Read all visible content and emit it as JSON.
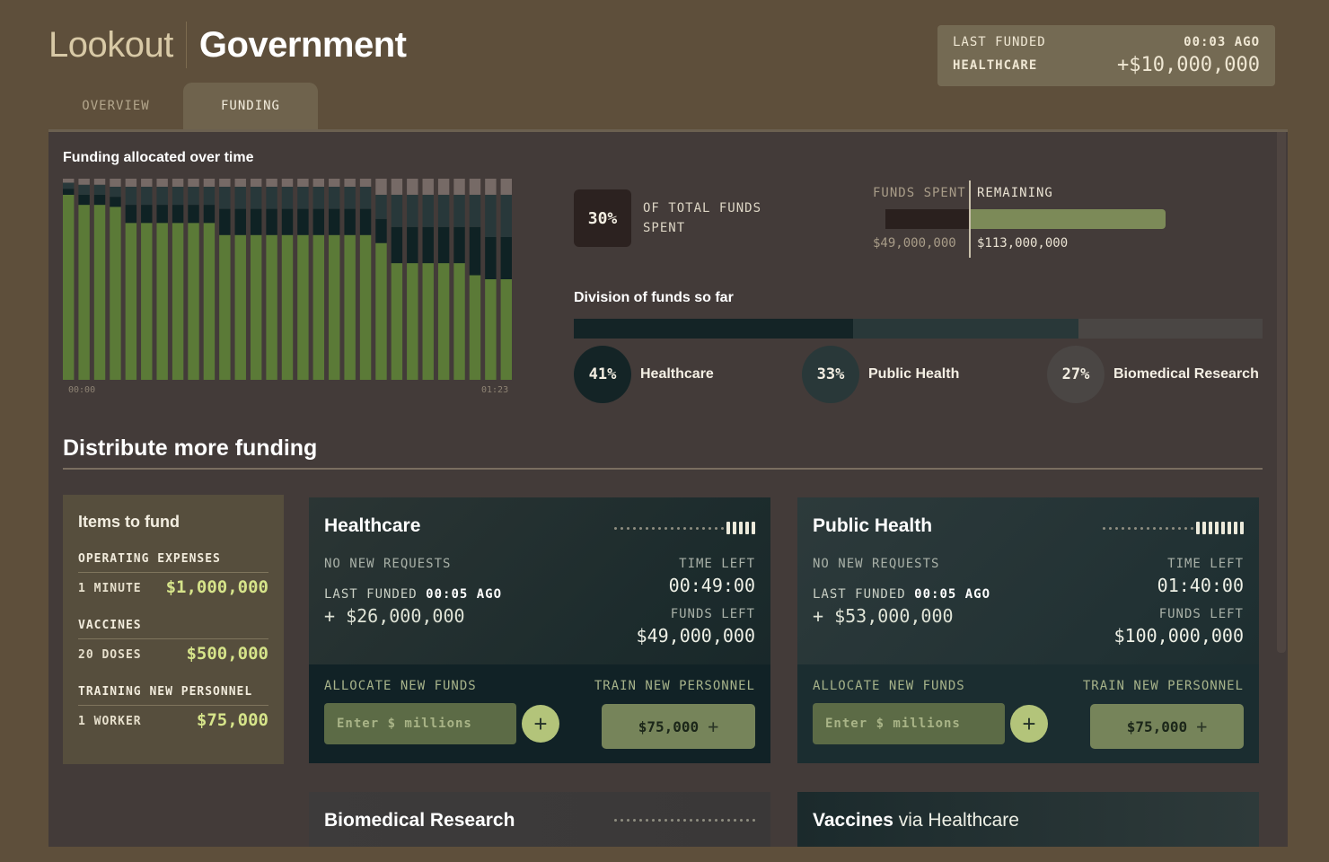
{
  "header": {
    "app_name": "Lookout",
    "page_name": "Government",
    "tabs": [
      {
        "label": "OVERVIEW"
      },
      {
        "label": "FUNDING"
      }
    ],
    "active_tab": "FUNDING"
  },
  "last_funded": {
    "label": "LAST FUNDED",
    "time": "00:03 AGO",
    "category": "HEALTHCARE",
    "amount": "+$10,000,000"
  },
  "chart_data": {
    "type": "bar",
    "title": "Funding allocated over time",
    "xlabel": "",
    "ylabel": "",
    "x_start": "00:00",
    "x_end": "01:23",
    "ylim": [
      0,
      100
    ],
    "stacking": "stacked-100",
    "series": [
      {
        "name": "",
        "color": "#5b7a37",
        "values": [
          92,
          87,
          87,
          86,
          78,
          78,
          78,
          78,
          78,
          78,
          72,
          72,
          72,
          72,
          72,
          72,
          72,
          72,
          72,
          72,
          68,
          58,
          58,
          58,
          58,
          58,
          52,
          50,
          50
        ]
      },
      {
        "name": "",
        "color": "#0f2224",
        "values": [
          3,
          5,
          5,
          5,
          9,
          9,
          9,
          9,
          9,
          9,
          13,
          13,
          13,
          13,
          13,
          13,
          13,
          13,
          13,
          13,
          12,
          18,
          18,
          18,
          18,
          18,
          24,
          21,
          21
        ]
      },
      {
        "name": "",
        "color": "#28383a",
        "values": [
          3,
          5,
          5,
          5,
          9,
          9,
          9,
          9,
          9,
          9,
          11,
          11,
          11,
          11,
          11,
          11,
          11,
          11,
          11,
          11,
          12,
          16,
          16,
          16,
          16,
          16,
          16,
          21,
          21
        ]
      },
      {
        "name": "",
        "color": "#766a66",
        "values": [
          2,
          3,
          3,
          4,
          4,
          4,
          4,
          4,
          4,
          4,
          4,
          4,
          4,
          4,
          4,
          4,
          4,
          4,
          4,
          4,
          8,
          8,
          8,
          8,
          8,
          8,
          8,
          8,
          8
        ]
      }
    ]
  },
  "spending": {
    "percent": "30%",
    "caption": "OF TOTAL FUNDS SPENT",
    "spent_label": "FUNDS SPENT",
    "remaining_label": "REMAINING",
    "spent_value": "$49,000,000",
    "remaining_value": "$113,000,000",
    "spent_fraction": 0.3,
    "colors": {
      "spent": "#2a201e",
      "remaining": "#7c8a58"
    }
  },
  "division": {
    "title": "Division of funds so far",
    "items": [
      {
        "percent": "41%",
        "share": 41,
        "label": "Healthcare",
        "color": "#142426"
      },
      {
        "percent": "33%",
        "share": 33,
        "label": "Public Health",
        "color": "#293839"
      },
      {
        "percent": "27%",
        "share": 27,
        "label": "Biomedical Research",
        "color": "#4a4644"
      }
    ]
  },
  "distribute": {
    "title": "Distribute more funding",
    "items_to_fund": {
      "title": "Items to fund",
      "categories": [
        {
          "name": "OPERATING EXPENSES",
          "qty": "1 MINUTE",
          "price": "$1,000,000"
        },
        {
          "name": "VACCINES",
          "qty": "20 DOSES",
          "price": "$500,000"
        },
        {
          "name": "TRAINING NEW PERSONNEL",
          "qty": "1 WORKER",
          "price": "$75,000"
        }
      ]
    },
    "cards": [
      {
        "name": "Healthcare",
        "requests": "NO NEW REQUESTS",
        "last_funded_label": "LAST FUNDED",
        "last_funded_time": "00:05 AGO",
        "last_amount": "+ $26,000,000",
        "time_left_label": "TIME LEFT",
        "time_left": "00:49:00",
        "funds_left_label": "FUNDS LEFT",
        "funds_left": "$49,000,000",
        "allocate_label": "ALLOCATE NEW FUNDS",
        "input_placeholder": "Enter $ millions",
        "plus": "+",
        "train_label": "TRAIN NEW PERSONNEL",
        "train_button": "$75,000",
        "train_plus": "+",
        "progress_filled": 5,
        "progress_total": 23
      },
      {
        "name": "Public Health",
        "requests": "NO NEW REQUESTS",
        "last_funded_label": "LAST FUNDED",
        "last_funded_time": "00:05 AGO",
        "last_amount": "+ $53,000,000",
        "time_left_label": "TIME LEFT",
        "time_left": "01:40:00",
        "funds_left_label": "FUNDS LEFT",
        "funds_left": "$100,000,000",
        "allocate_label": "ALLOCATE NEW FUNDS",
        "input_placeholder": "Enter $ millions",
        "plus": "+",
        "train_label": "TRAIN NEW PERSONNEL",
        "train_button": "$75,000",
        "train_plus": "+",
        "progress_filled": 8,
        "progress_total": 23
      }
    ],
    "more_cards": [
      {
        "name": "Biomedical Research",
        "via": ""
      },
      {
        "name": "Vaccines",
        "via": "via Healthcare"
      }
    ]
  }
}
